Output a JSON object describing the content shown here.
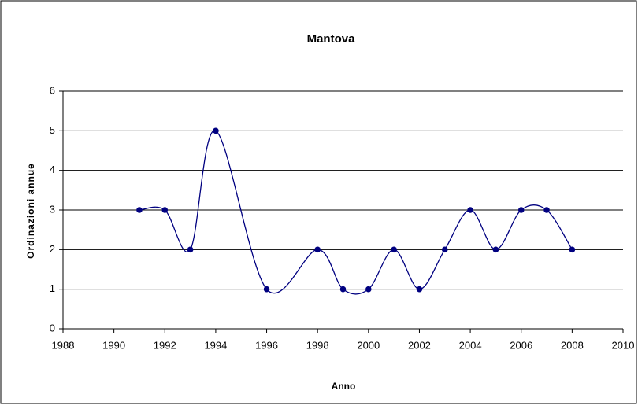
{
  "chart_data": {
    "type": "scatter",
    "title": "Mantova",
    "xlabel": "Anno",
    "ylabel": "Ordinazioni annue",
    "x": [
      1991,
      1992,
      1993,
      1994,
      1996,
      1998,
      1999,
      2000,
      2001,
      2002,
      2003,
      2004,
      2005,
      2006,
      2007,
      2008
    ],
    "series": [
      {
        "name": "Mantova",
        "color": "#000080",
        "values": [
          3,
          3,
          2,
          5,
          1,
          2,
          1,
          1,
          2,
          1,
          2,
          3,
          2,
          3,
          3,
          2
        ]
      }
    ],
    "xlim": [
      1988,
      2010
    ],
    "xticks": [
      1988,
      1990,
      1992,
      1994,
      1996,
      1998,
      2000,
      2002,
      2004,
      2006,
      2008,
      2010
    ],
    "ylim": [
      0,
      6
    ],
    "yticks": [
      0,
      1,
      2,
      3,
      4,
      5,
      6
    ],
    "grid": true,
    "smooth": true
  }
}
